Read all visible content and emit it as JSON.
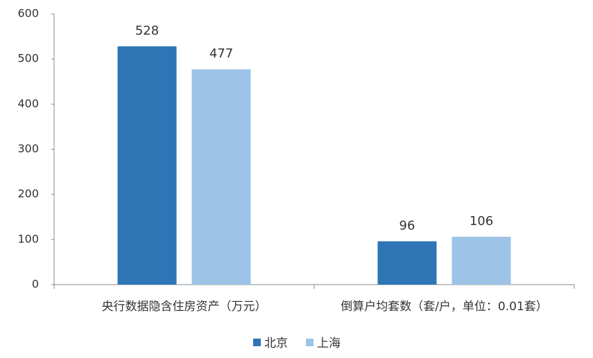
{
  "chart_data": {
    "type": "bar",
    "categories": [
      "央行数据隐含住房资产（万元）",
      "倒算户均套数（套/户，单位：0.01套）"
    ],
    "series": [
      {
        "name": "北京",
        "color": "#2e75b6",
        "values": [
          528,
          96
        ]
      },
      {
        "name": "上海",
        "color": "#9dc3e6",
        "values": [
          477,
          106
        ]
      }
    ],
    "ylim": [
      0,
      600
    ],
    "yticks": [
      0,
      100,
      200,
      300,
      400,
      500,
      600
    ],
    "legend": "bottom"
  }
}
